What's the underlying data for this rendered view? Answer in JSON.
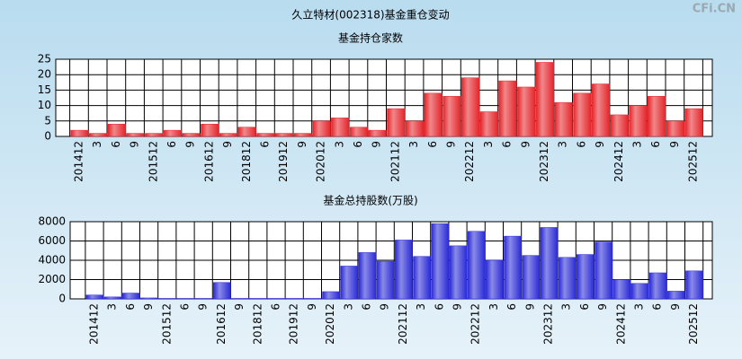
{
  "title": "久立特材(002318)基金重仓变动",
  "watermark": "CFi.CN",
  "chart_data": [
    {
      "type": "bar",
      "title": "基金持仓家数",
      "color": "#e4252a",
      "categories": [
        "201412",
        "3",
        "6",
        "9",
        "201512",
        "6",
        "9",
        "201612",
        "9",
        "201812",
        "6",
        "201912",
        "9",
        "202012",
        "3",
        "6",
        "9",
        "202112",
        "3",
        "6",
        "9",
        "202212",
        "3",
        "6",
        "9",
        "202312",
        "3",
        "6",
        "9",
        "202412",
        "3",
        "6",
        "9",
        "202512"
      ],
      "values": [
        2,
        1,
        4,
        1,
        1,
        2,
        1,
        4,
        1,
        3,
        1,
        1,
        1,
        5,
        6,
        3,
        2,
        9,
        5,
        14,
        13,
        19,
        8,
        18,
        16,
        24,
        11,
        14,
        17,
        7,
        10,
        13,
        5,
        9
      ],
      "ylim": [
        0,
        25
      ],
      "yticks": [
        0,
        5,
        10,
        15,
        20,
        25
      ],
      "grid": true
    },
    {
      "type": "bar",
      "title": "基金总持股数(万股)",
      "color": "#2a2ad6",
      "categories": [
        "201412",
        "3",
        "6",
        "9",
        "201512",
        "6",
        "9",
        "201612",
        "9",
        "201812",
        "6",
        "201912",
        "9",
        "202012",
        "3",
        "6",
        "9",
        "202112",
        "3",
        "6",
        "9",
        "202212",
        "3",
        "6",
        "9",
        "202312",
        "3",
        "6",
        "9",
        "202412",
        "3",
        "6",
        "9",
        "202512"
      ],
      "values": [
        400,
        200,
        600,
        100,
        50,
        50,
        50,
        1700,
        50,
        50,
        50,
        50,
        50,
        750,
        3400,
        4800,
        3900,
        6100,
        4400,
        7800,
        5500,
        7000,
        4000,
        6500,
        4500,
        7400,
        4300,
        4600,
        5900,
        2000,
        1600,
        2700,
        800,
        2900
      ],
      "ylim": [
        0,
        8000
      ],
      "yticks": [
        0,
        2000,
        4000,
        6000,
        8000
      ],
      "grid": true
    }
  ]
}
